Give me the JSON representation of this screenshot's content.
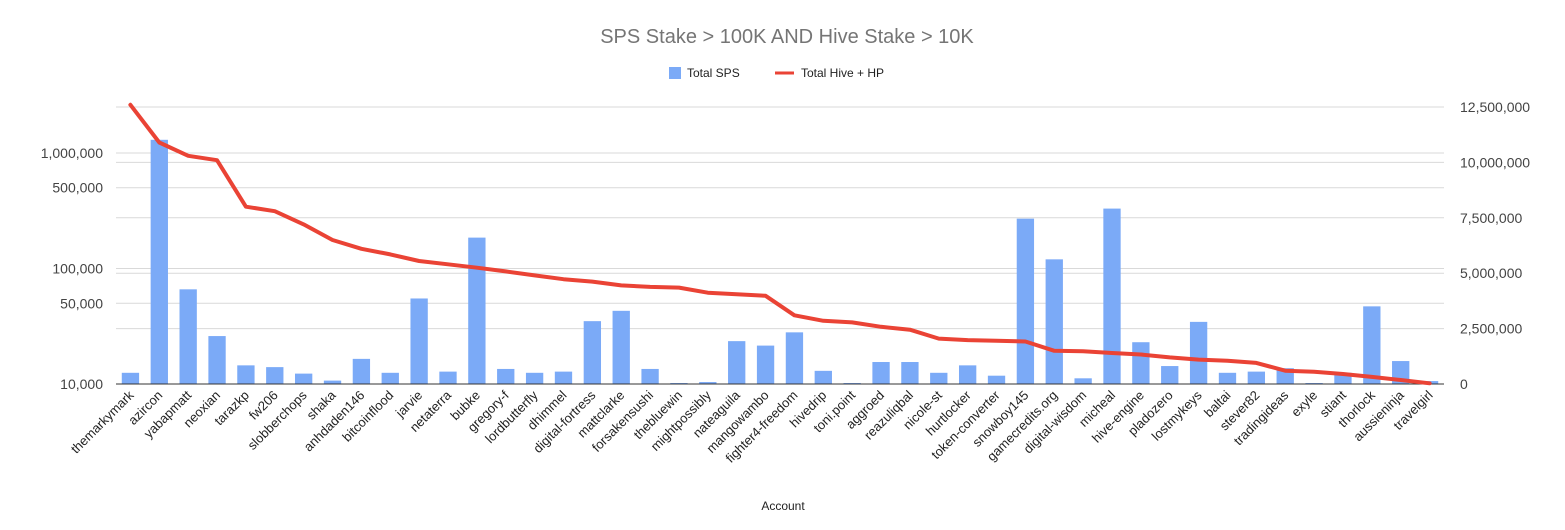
{
  "chart_data": {
    "type": "bar+line",
    "title": "SPS Stake > 100K AND Hive Stake > 10K",
    "xlabel": "Account",
    "legend_position": "top",
    "grid": true,
    "categories": [
      "themarkymark",
      "azircon",
      "yabapmatt",
      "neoxian",
      "tarazkp",
      "fw206",
      "slobberchops",
      "shaka",
      "anhdaden146",
      "bitcoinflood",
      "jarvie",
      "netaterra",
      "bubke",
      "gregory-f",
      "lordbutterfly",
      "dhimmel",
      "digital-fortress",
      "mattclarke",
      "forsakensushi",
      "thebluewin",
      "mightpossibly",
      "nateaguila",
      "mangowambo",
      "fighter4-freedom",
      "hivedrip",
      "toni.point",
      "aggroed",
      "reazuliqbal",
      "nicole-st",
      "hurtlocker",
      "token-converter",
      "snowboy145",
      "gamecredits.org",
      "digital-wisdom",
      "micheal",
      "hive-engine",
      "pladozero",
      "lostmykeys",
      "baltai",
      "stever82",
      "tradingideas",
      "exyle",
      "stiant",
      "thorlock",
      "aussieninja",
      "travelgirl"
    ],
    "series": [
      {
        "name": "Total SPS",
        "axis": "left",
        "scale": "log",
        "color": "#7baaf7",
        "values": [
          12500,
          1300000,
          66000,
          26000,
          14500,
          14000,
          12300,
          10700,
          16500,
          12500,
          55000,
          12800,
          185000,
          13500,
          12500,
          12800,
          35000,
          43000,
          13500,
          10000,
          10400,
          23500,
          21500,
          28000,
          13000,
          9900,
          15500,
          15500,
          12500,
          14500,
          11800,
          270000,
          120000,
          11200,
          330000,
          23000,
          14300,
          34500,
          12500,
          12800,
          13700,
          10200,
          12500,
          47000,
          15800,
          10600
        ]
      },
      {
        "name": "Total Hive + HP",
        "axis": "right",
        "scale": "linear",
        "color": "#ea4335",
        "values": [
          12600000,
          10900000,
          10300000,
          10100000,
          8000000,
          7800000,
          7200000,
          6500000,
          6100000,
          5850000,
          5550000,
          5400000,
          5250000,
          5080000,
          4900000,
          4730000,
          4620000,
          4450000,
          4380000,
          4350000,
          4120000,
          4050000,
          3980000,
          3100000,
          2850000,
          2780000,
          2580000,
          2450000,
          2050000,
          1980000,
          1950000,
          1920000,
          1500000,
          1480000,
          1400000,
          1330000,
          1200000,
          1100000,
          1050000,
          950000,
          600000,
          550000,
          450000,
          320000,
          180000,
          30000
        ]
      }
    ],
    "y_left": {
      "ylim": [
        10000,
        2500000
      ],
      "ticks": [
        10000,
        50000,
        100000,
        500000,
        1000000
      ],
      "tick_labels": [
        "10,000",
        "50,000",
        "100,000",
        "500,000",
        "1,000,000"
      ]
    },
    "y_right": {
      "ylim": [
        0,
        12500000
      ],
      "ticks": [
        0,
        2500000,
        5000000,
        7500000,
        10000000,
        12500000
      ],
      "tick_labels": [
        "0",
        "2,500,000",
        "5,000,000",
        "7,500,000",
        "10,000,000",
        "12,500,000"
      ]
    }
  }
}
